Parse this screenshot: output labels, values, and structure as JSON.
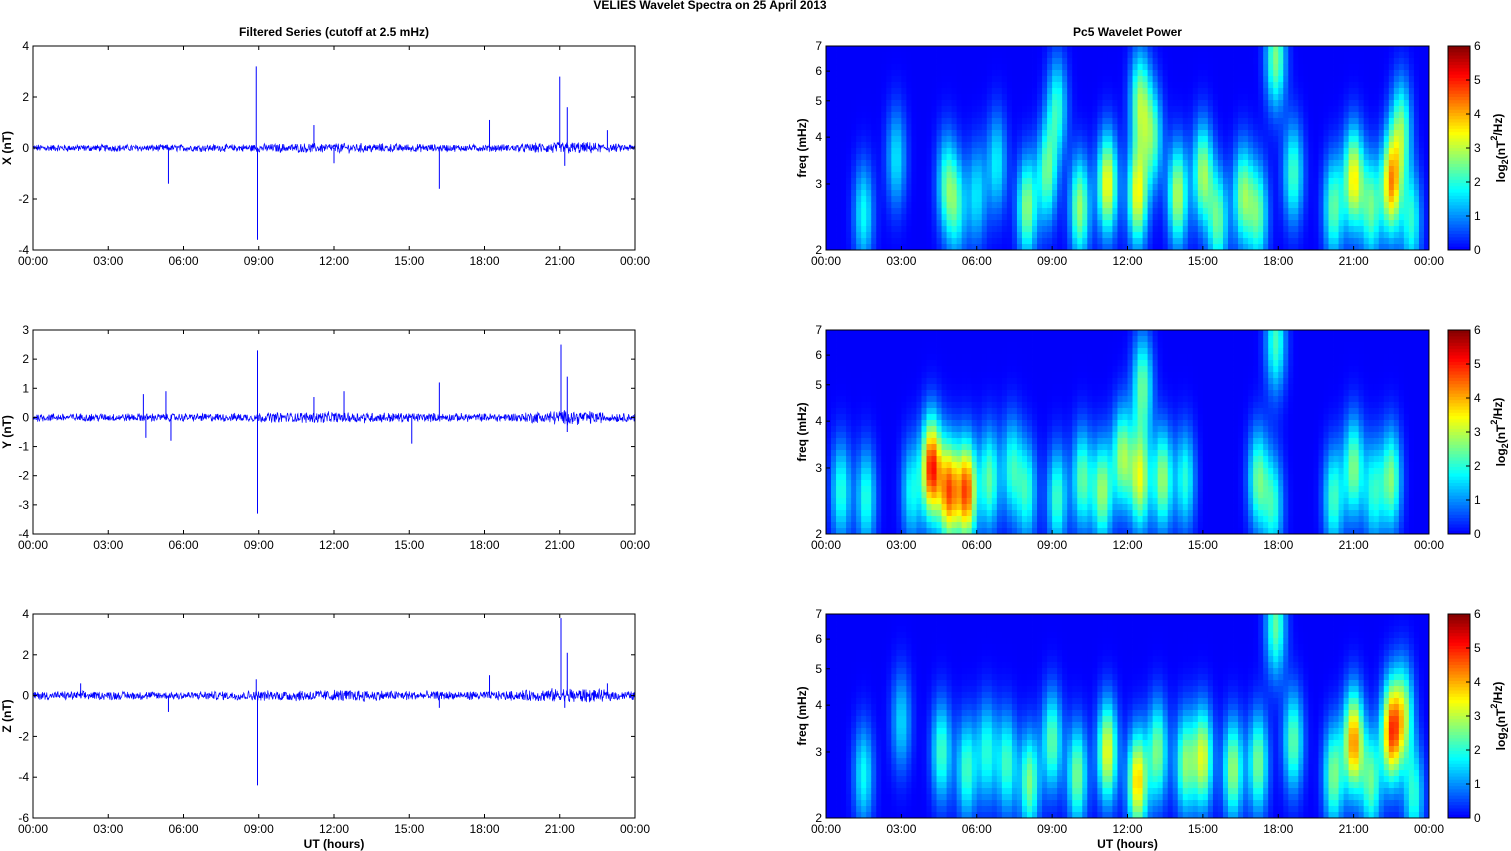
{
  "figure": {
    "title": "VELIES Wavelet Spectra on 25 April     2013"
  },
  "chart_data": [
    {
      "type": "line",
      "title": "Filtered Series (cutoff at 2.5 mHz)",
      "ylabel": "X (nT)",
      "xlabel": "",
      "xticks": [
        "00:00",
        "03:00",
        "06:00",
        "09:00",
        "12:00",
        "15:00",
        "18:00",
        "21:00",
        "00:00"
      ],
      "yticks": [
        "4",
        "2",
        "0",
        "-2",
        "-4"
      ],
      "ylim": [
        -4,
        4
      ],
      "xlim_hours": [
        0,
        24
      ],
      "line_color": "#0000ff",
      "noise_amplitude": 0.12,
      "spikes": [
        {
          "t": 5.4,
          "v": -1.4
        },
        {
          "t": 8.9,
          "v": 3.2
        },
        {
          "t": 8.95,
          "v": -3.6
        },
        {
          "t": 11.2,
          "v": 0.9
        },
        {
          "t": 12.0,
          "v": -0.6
        },
        {
          "t": 16.2,
          "v": -1.6
        },
        {
          "t": 18.2,
          "v": 1.1
        },
        {
          "t": 21.0,
          "v": 2.8
        },
        {
          "t": 21.3,
          "v": 1.6
        },
        {
          "t": 21.2,
          "v": -0.7
        },
        {
          "t": 22.9,
          "v": 0.7
        }
      ]
    },
    {
      "type": "line",
      "title": "",
      "ylabel": "Y (nT)",
      "xlabel": "",
      "xticks": [
        "00:00",
        "03:00",
        "06:00",
        "09:00",
        "12:00",
        "15:00",
        "18:00",
        "21:00",
        "00:00"
      ],
      "yticks": [
        "3",
        "2",
        "1",
        "0",
        "-1",
        "-2",
        "-3",
        "-4"
      ],
      "ylim": [
        -4,
        3
      ],
      "xlim_hours": [
        0,
        24
      ],
      "line_color": "#0000ff",
      "noise_amplitude": 0.12,
      "spikes": [
        {
          "t": 4.4,
          "v": 0.8
        },
        {
          "t": 4.5,
          "v": -0.7
        },
        {
          "t": 5.3,
          "v": 0.9
        },
        {
          "t": 5.5,
          "v": -0.8
        },
        {
          "t": 8.95,
          "v": 2.3
        },
        {
          "t": 8.95,
          "v": -3.3
        },
        {
          "t": 11.2,
          "v": 0.7
        },
        {
          "t": 12.4,
          "v": 0.9
        },
        {
          "t": 15.1,
          "v": -0.9
        },
        {
          "t": 16.2,
          "v": 1.2
        },
        {
          "t": 21.05,
          "v": 2.5
        },
        {
          "t": 21.3,
          "v": 1.4
        },
        {
          "t": 21.3,
          "v": -0.5
        }
      ]
    },
    {
      "type": "line",
      "title": "",
      "ylabel": "Z (nT)",
      "xlabel": "UT (hours)",
      "xticks": [
        "00:00",
        "03:00",
        "06:00",
        "09:00",
        "12:00",
        "15:00",
        "18:00",
        "21:00",
        "00:00"
      ],
      "yticks": [
        "4",
        "2",
        "0",
        "-2",
        "-4",
        "-6"
      ],
      "ylim": [
        -6,
        4
      ],
      "xlim_hours": [
        0,
        24
      ],
      "line_color": "#0000ff",
      "noise_amplitude": 0.18,
      "spikes": [
        {
          "t": 1.9,
          "v": 0.6
        },
        {
          "t": 5.4,
          "v": -0.8
        },
        {
          "t": 8.95,
          "v": -4.4
        },
        {
          "t": 8.9,
          "v": 0.8
        },
        {
          "t": 16.2,
          "v": -0.6
        },
        {
          "t": 18.2,
          "v": 1.0
        },
        {
          "t": 21.05,
          "v": 3.8
        },
        {
          "t": 21.3,
          "v": 2.1
        },
        {
          "t": 21.2,
          "v": -0.6
        },
        {
          "t": 22.9,
          "v": 0.6
        }
      ]
    },
    {
      "type": "heatmap",
      "title": "Pc5 Wavelet Power",
      "ylabel": "freq (mHz)",
      "xlabel": "",
      "xticks": [
        "00:00",
        "03:00",
        "06:00",
        "09:00",
        "12:00",
        "15:00",
        "18:00",
        "21:00",
        "00:00"
      ],
      "yticks": [
        "7",
        "6",
        "5",
        "4",
        "3",
        "2"
      ],
      "ylim_mhz": [
        2,
        7
      ],
      "yscale": "log",
      "colorbar": {
        "label": "log2(nT2/Hz)",
        "ticks": [
          "6",
          "5",
          "4",
          "3",
          "2",
          "1",
          "0"
        ],
        "range": [
          0,
          6
        ],
        "colormap": "jet"
      },
      "blobs": [
        {
          "t": 1.5,
          "f": 2.5,
          "p": 1.8
        },
        {
          "t": 2.8,
          "f": 3.5,
          "p": 1.6
        },
        {
          "t": 4.8,
          "f": 3.0,
          "p": 2.0
        },
        {
          "t": 5.2,
          "f": 2.6,
          "p": 1.8
        },
        {
          "t": 6.0,
          "f": 2.8,
          "p": 1.6
        },
        {
          "t": 6.8,
          "f": 3.4,
          "p": 1.7
        },
        {
          "t": 8.0,
          "f": 2.6,
          "p": 2.7
        },
        {
          "t": 8.8,
          "f": 3.2,
          "p": 2.4
        },
        {
          "t": 9.2,
          "f": 4.8,
          "p": 2.0
        },
        {
          "t": 10.1,
          "f": 2.6,
          "p": 2.8
        },
        {
          "t": 11.2,
          "f": 3.0,
          "p": 3.5
        },
        {
          "t": 12.4,
          "f": 2.8,
          "p": 3.4
        },
        {
          "t": 12.5,
          "f": 5.0,
          "p": 2.6
        },
        {
          "t": 13.0,
          "f": 4.0,
          "p": 2.2
        },
        {
          "t": 14.0,
          "f": 2.8,
          "p": 3.0
        },
        {
          "t": 15.0,
          "f": 3.2,
          "p": 2.8
        },
        {
          "t": 15.6,
          "f": 2.4,
          "p": 2.4
        },
        {
          "t": 16.6,
          "f": 2.8,
          "p": 2.6
        },
        {
          "t": 17.2,
          "f": 2.5,
          "p": 2.3
        },
        {
          "t": 17.9,
          "f": 6.5,
          "p": 2.6
        },
        {
          "t": 18.6,
          "f": 3.2,
          "p": 2.2
        },
        {
          "t": 20.2,
          "f": 2.6,
          "p": 2.4
        },
        {
          "t": 21.0,
          "f": 3.1,
          "p": 3.5
        },
        {
          "t": 21.7,
          "f": 2.6,
          "p": 2.4
        },
        {
          "t": 22.5,
          "f": 3.0,
          "p": 4.0
        },
        {
          "t": 22.9,
          "f": 4.2,
          "p": 2.4
        },
        {
          "t": 23.3,
          "f": 2.4,
          "p": 2.0
        }
      ]
    },
    {
      "type": "heatmap",
      "title": "",
      "ylabel": "freq (mHz)",
      "xlabel": "",
      "xticks": [
        "00:00",
        "03:00",
        "06:00",
        "09:00",
        "12:00",
        "15:00",
        "18:00",
        "21:00",
        "00:00"
      ],
      "yticks": [
        "7",
        "6",
        "5",
        "4",
        "3",
        "2"
      ],
      "ylim_mhz": [
        2,
        7
      ],
      "yscale": "log",
      "colorbar": {
        "label": "log2(nT2/Hz)",
        "ticks": [
          "6",
          "5",
          "4",
          "3",
          "2",
          "1",
          "0"
        ],
        "range": [
          0,
          6
        ],
        "colormap": "jet"
      },
      "blobs": [
        {
          "t": 0.6,
          "f": 2.6,
          "p": 2.0
        },
        {
          "t": 1.6,
          "f": 2.5,
          "p": 2.0
        },
        {
          "t": 3.4,
          "f": 2.6,
          "p": 1.8
        },
        {
          "t": 4.2,
          "f": 3.0,
          "p": 5.0
        },
        {
          "t": 4.9,
          "f": 2.6,
          "p": 4.4
        },
        {
          "t": 5.6,
          "f": 2.6,
          "p": 4.6
        },
        {
          "t": 6.5,
          "f": 2.8,
          "p": 2.4
        },
        {
          "t": 7.4,
          "f": 3.0,
          "p": 2.0
        },
        {
          "t": 8.0,
          "f": 2.6,
          "p": 2.0
        },
        {
          "t": 9.2,
          "f": 2.5,
          "p": 2.2
        },
        {
          "t": 10.2,
          "f": 2.8,
          "p": 2.4
        },
        {
          "t": 11.0,
          "f": 2.6,
          "p": 2.8
        },
        {
          "t": 11.8,
          "f": 3.2,
          "p": 2.8
        },
        {
          "t": 12.5,
          "f": 2.8,
          "p": 3.2
        },
        {
          "t": 12.6,
          "f": 5.0,
          "p": 2.4
        },
        {
          "t": 13.4,
          "f": 2.8,
          "p": 2.8
        },
        {
          "t": 14.3,
          "f": 2.8,
          "p": 2.0
        },
        {
          "t": 17.2,
          "f": 2.8,
          "p": 2.4
        },
        {
          "t": 17.8,
          "f": 2.4,
          "p": 2.0
        },
        {
          "t": 17.9,
          "f": 6.5,
          "p": 2.2
        },
        {
          "t": 20.2,
          "f": 2.5,
          "p": 2.2
        },
        {
          "t": 21.0,
          "f": 3.0,
          "p": 2.6
        },
        {
          "t": 21.8,
          "f": 2.6,
          "p": 2.0
        },
        {
          "t": 22.5,
          "f": 2.8,
          "p": 2.6
        }
      ]
    },
    {
      "type": "heatmap",
      "title": "",
      "ylabel": "freq (mHz)",
      "xlabel": "UT (hours)",
      "xticks": [
        "00:00",
        "03:00",
        "06:00",
        "09:00",
        "12:00",
        "15:00",
        "18:00",
        "21:00",
        "00:00"
      ],
      "yticks": [
        "7",
        "6",
        "5",
        "4",
        "3",
        "2"
      ],
      "ylim_mhz": [
        2,
        7
      ],
      "yscale": "log",
      "colorbar": {
        "label": "log2(nT2/Hz)",
        "ticks": [
          "6",
          "5",
          "4",
          "3",
          "2",
          "1",
          "0"
        ],
        "range": [
          0,
          6
        ],
        "colormap": "jet"
      },
      "blobs": [
        {
          "t": 1.5,
          "f": 2.6,
          "p": 1.8
        },
        {
          "t": 3.0,
          "f": 3.6,
          "p": 1.5
        },
        {
          "t": 4.6,
          "f": 3.0,
          "p": 2.2
        },
        {
          "t": 5.6,
          "f": 2.7,
          "p": 2.2
        },
        {
          "t": 6.4,
          "f": 3.0,
          "p": 2.0
        },
        {
          "t": 7.2,
          "f": 2.8,
          "p": 2.2
        },
        {
          "t": 8.1,
          "f": 2.5,
          "p": 2.6
        },
        {
          "t": 9.0,
          "f": 3.2,
          "p": 2.4
        },
        {
          "t": 10.0,
          "f": 2.6,
          "p": 2.6
        },
        {
          "t": 11.2,
          "f": 3.0,
          "p": 3.4
        },
        {
          "t": 12.4,
          "f": 2.5,
          "p": 3.8
        },
        {
          "t": 13.2,
          "f": 3.0,
          "p": 2.6
        },
        {
          "t": 14.3,
          "f": 2.8,
          "p": 2.6
        },
        {
          "t": 15.0,
          "f": 2.9,
          "p": 3.2
        },
        {
          "t": 16.2,
          "f": 2.7,
          "p": 2.8
        },
        {
          "t": 17.2,
          "f": 2.8,
          "p": 2.6
        },
        {
          "t": 17.9,
          "f": 6.5,
          "p": 2.4
        },
        {
          "t": 18.6,
          "f": 3.2,
          "p": 2.4
        },
        {
          "t": 20.2,
          "f": 2.6,
          "p": 2.6
        },
        {
          "t": 21.0,
          "f": 3.2,
          "p": 4.2
        },
        {
          "t": 21.7,
          "f": 2.5,
          "p": 2.4
        },
        {
          "t": 22.5,
          "f": 3.4,
          "p": 4.4
        },
        {
          "t": 23.0,
          "f": 3.8,
          "p": 2.6
        },
        {
          "t": 23.4,
          "f": 2.3,
          "p": 2.0
        }
      ]
    }
  ]
}
